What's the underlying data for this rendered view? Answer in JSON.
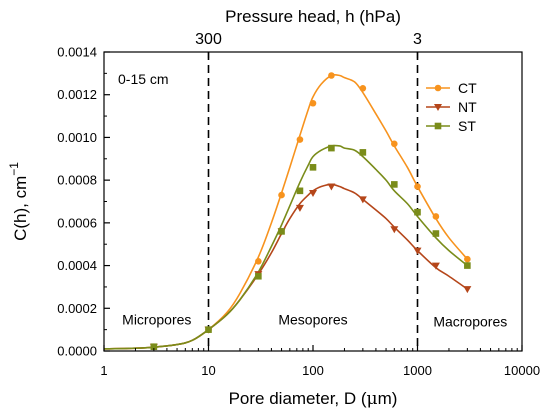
{
  "chart_data": {
    "type": "line",
    "x_scale": "log",
    "xlim": [
      1,
      10000
    ],
    "ylim": [
      0,
      0.0014
    ],
    "xlabel_prefix": "Pore diameter, D (",
    "xlabel_unit_glyph": "μ",
    "xlabel_suffix": "m)",
    "ylabel_main": "C(h), cm",
    "ylabel_sup": "−1",
    "top_axis_label": "Pressure head, h (hPa)",
    "x_ticks": [
      1,
      10,
      100,
      1000,
      10000
    ],
    "x_tick_labels": [
      "1",
      "10",
      "100",
      "1000",
      "10000"
    ],
    "y_ticks": [
      0,
      0.0002,
      0.0004,
      0.0006,
      0.0008,
      0.001,
      0.0012,
      0.0014
    ],
    "y_tick_labels": [
      "0.0000",
      "0.0002",
      "0.0004",
      "0.0006",
      "0.0008",
      "0.0010",
      "0.0012",
      "0.0014"
    ],
    "top_ticks": [
      {
        "x": 10,
        "label": "300"
      },
      {
        "x": 1000,
        "label": "3"
      }
    ],
    "vlines": [
      10,
      1000
    ],
    "depth_label": "0-15 cm",
    "regions": [
      {
        "label": "Micropores",
        "x": 3.2,
        "y": 0.000125
      },
      {
        "label": "Mesopores",
        "x": 100,
        "y": 0.000125
      },
      {
        "label": "Macropores",
        "x": 3200,
        "y": 0.000115
      }
    ],
    "legend_position": "top-right",
    "series": [
      {
        "name": "CT",
        "color": "#f7931e",
        "marker": "circle",
        "x": [
          3,
          10,
          30,
          50,
          75,
          100,
          150,
          300,
          600,
          1000,
          1500,
          3000
        ],
        "y": [
          2e-05,
          0.0001,
          0.00042,
          0.00073,
          0.00099,
          0.00116,
          0.00129,
          0.00123,
          0.00097,
          0.00077,
          0.00063,
          0.00043
        ],
        "curve_x": [
          1,
          2,
          3,
          5,
          7,
          10,
          15,
          20,
          30,
          40,
          50,
          60,
          75,
          90,
          100,
          120,
          150,
          180,
          200,
          250,
          300,
          400,
          500,
          600,
          800,
          1000,
          1500,
          2000,
          3000
        ],
        "curve_y": [
          1e-05,
          1.3e-05,
          1.8e-05,
          3e-05,
          5e-05,
          0.0001,
          0.00018,
          0.00027,
          0.00044,
          0.0006,
          0.00074,
          0.00086,
          0.00101,
          0.00113,
          0.00119,
          0.00125,
          0.00129,
          0.00129,
          0.00128,
          0.00126,
          0.00121,
          0.00111,
          0.00103,
          0.00096,
          0.00086,
          0.00077,
          0.00062,
          0.00053,
          0.00043
        ]
      },
      {
        "name": "NT",
        "color": "#b5461a",
        "marker": "triangle-down",
        "x": [
          3,
          10,
          30,
          50,
          75,
          100,
          150,
          300,
          600,
          1000,
          1500,
          3000
        ],
        "y": [
          2e-05,
          0.0001,
          0.00036,
          0.00056,
          0.00067,
          0.00074,
          0.00077,
          0.00071,
          0.00057,
          0.00047,
          0.0004,
          0.00029
        ],
        "curve_x": [
          1,
          2,
          3,
          5,
          7,
          10,
          15,
          20,
          30,
          40,
          50,
          60,
          75,
          90,
          100,
          120,
          150,
          180,
          200,
          250,
          300,
          400,
          500,
          600,
          800,
          1000,
          1500,
          2000,
          3000
        ],
        "curve_y": [
          1e-05,
          1.3e-05,
          1.8e-05,
          3e-05,
          5e-05,
          0.0001,
          0.00017,
          0.00024,
          0.00036,
          0.00046,
          0.00055,
          0.00062,
          0.00069,
          0.00073,
          0.00075,
          0.00077,
          0.00078,
          0.00077,
          0.00076,
          0.00074,
          0.00071,
          0.00066,
          0.00062,
          0.00058,
          0.00052,
          0.00047,
          0.00039,
          0.00035,
          0.00029
        ]
      },
      {
        "name": "ST",
        "color": "#7a8c1a",
        "marker": "square",
        "x": [
          3,
          10,
          30,
          50,
          75,
          100,
          150,
          300,
          600,
          1000,
          1500,
          3000
        ],
        "y": [
          2e-05,
          0.0001,
          0.00035,
          0.00056,
          0.00075,
          0.00086,
          0.00095,
          0.00093,
          0.00078,
          0.00065,
          0.00055,
          0.0004
        ],
        "curve_x": [
          1,
          2,
          3,
          5,
          7,
          10,
          15,
          20,
          30,
          40,
          50,
          60,
          75,
          90,
          100,
          120,
          150,
          180,
          200,
          250,
          300,
          400,
          500,
          600,
          800,
          1000,
          1500,
          2000,
          3000
        ],
        "curve_y": [
          1e-05,
          1.3e-05,
          1.8e-05,
          3e-05,
          5e-05,
          0.0001,
          0.00017,
          0.00024,
          0.00037,
          0.00049,
          0.00059,
          0.00068,
          0.00079,
          0.00087,
          0.00091,
          0.00094,
          0.00096,
          0.00096,
          0.00095,
          0.00094,
          0.00091,
          0.00085,
          0.0008,
          0.00075,
          0.00069,
          0.00063,
          0.00053,
          0.00047,
          0.0004
        ]
      }
    ]
  }
}
